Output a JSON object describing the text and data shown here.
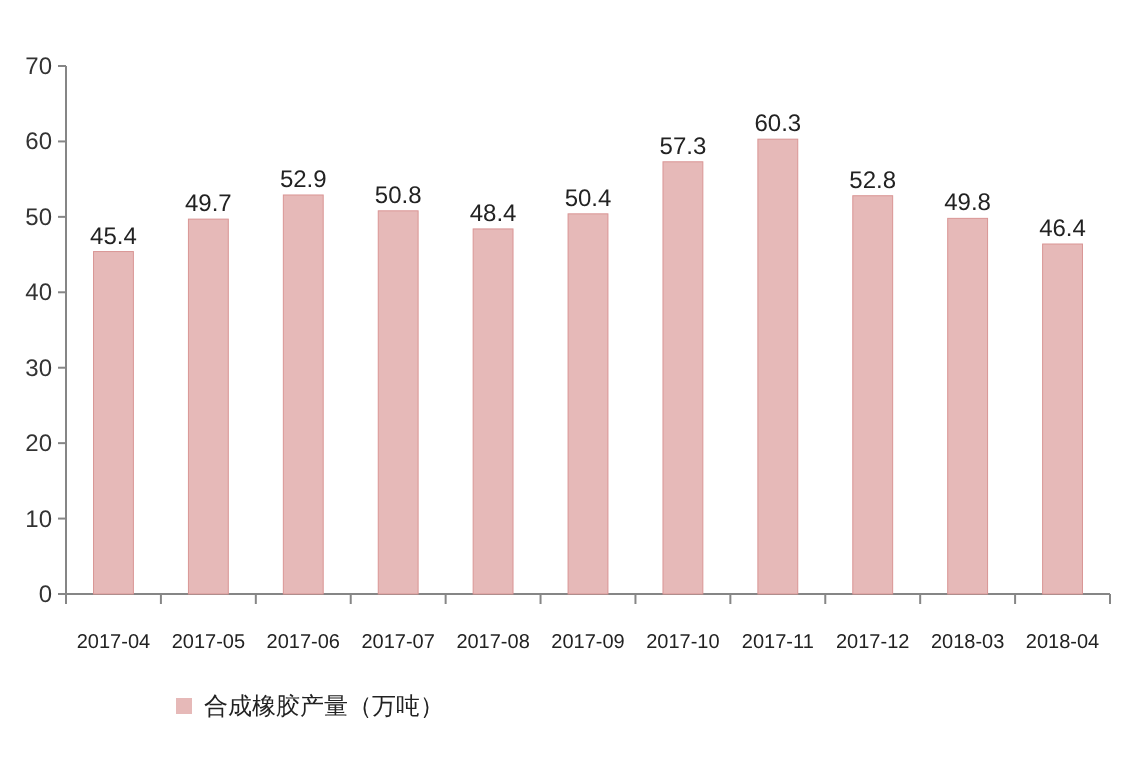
{
  "chart_data": {
    "type": "bar",
    "categories": [
      "2017-04",
      "2017-05",
      "2017-06",
      "2017-07",
      "2017-08",
      "2017-09",
      "2017-10",
      "2017-11",
      "2017-12",
      "2018-03",
      "2018-04"
    ],
    "series": [
      {
        "name": "合成橡胶产量（万吨）",
        "color": "#e6b9b8",
        "values": [
          45.4,
          49.7,
          52.9,
          50.8,
          48.4,
          50.4,
          57.3,
          60.3,
          52.8,
          49.8,
          46.4
        ]
      }
    ],
    "ylim": [
      0,
      70
    ],
    "yticks": [
      0,
      10,
      20,
      30,
      40,
      50,
      60,
      70
    ],
    "data_labels": true,
    "legend": "bottom",
    "grid": false
  }
}
